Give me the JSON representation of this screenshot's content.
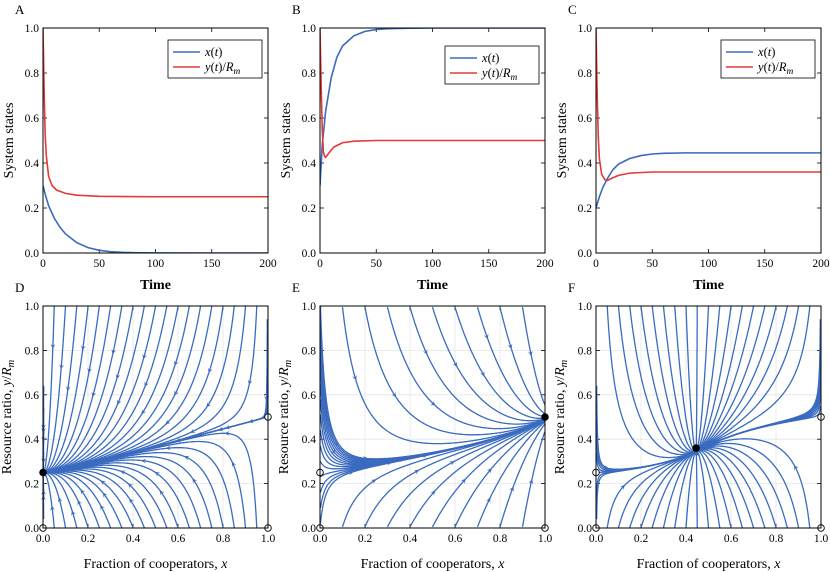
{
  "chart_data": [
    {
      "panel": "A",
      "type": "line",
      "xlabel": "Time",
      "ylabel": "System states",
      "xlim": [
        0,
        200
      ],
      "ylim": [
        0,
        1
      ],
      "xticks": [
        "0",
        "50",
        "100",
        "150",
        "200"
      ],
      "yticks": [
        "0.0",
        "0.2",
        "0.4",
        "0.6",
        "0.8",
        "1.0"
      ],
      "legend_position": "top-right",
      "series": [
        {
          "name": "x(t)",
          "color": "#3a6bbf",
          "x": [
            0,
            2,
            5,
            10,
            15,
            20,
            30,
            40,
            50,
            60,
            70,
            80,
            100,
            150,
            200
          ],
          "y": [
            0.3,
            0.26,
            0.21,
            0.155,
            0.115,
            0.085,
            0.046,
            0.024,
            0.012,
            0.006,
            0.003,
            0.0015,
            0.0004,
            0.0,
            0.0
          ]
        },
        {
          "name": "y(t)/R_m",
          "color": "#e53935",
          "x": [
            0,
            1,
            2,
            3,
            5,
            8,
            12,
            20,
            30,
            50,
            100,
            150,
            200
          ],
          "y": [
            1.0,
            0.72,
            0.52,
            0.43,
            0.34,
            0.3,
            0.28,
            0.265,
            0.257,
            0.252,
            0.25,
            0.25,
            0.25
          ]
        }
      ]
    },
    {
      "panel": "B",
      "type": "line",
      "xlabel": "Time",
      "ylabel": "System states",
      "xlim": [
        0,
        200
      ],
      "ylim": [
        0,
        1
      ],
      "xticks": [
        "0",
        "50",
        "100",
        "150",
        "200"
      ],
      "yticks": [
        "0.0",
        "0.2",
        "0.4",
        "0.6",
        "0.8",
        "1.0"
      ],
      "legend_position": "right",
      "series": [
        {
          "name": "x(t)",
          "color": "#3a6bbf",
          "x": [
            0,
            2,
            5,
            10,
            15,
            20,
            30,
            40,
            50,
            60,
            80,
            100,
            200
          ],
          "y": [
            0.3,
            0.48,
            0.63,
            0.78,
            0.87,
            0.92,
            0.965,
            0.985,
            0.993,
            0.997,
            0.999,
            1.0,
            1.0
          ]
        },
        {
          "name": "y(t)/R_m",
          "color": "#e53935",
          "x": [
            0,
            1,
            2,
            3,
            4,
            5,
            8,
            12,
            20,
            30,
            50,
            100,
            200
          ],
          "y": [
            1.0,
            0.75,
            0.55,
            0.45,
            0.43,
            0.425,
            0.445,
            0.47,
            0.49,
            0.497,
            0.5,
            0.5,
            0.5
          ]
        }
      ]
    },
    {
      "panel": "C",
      "type": "line",
      "xlabel": "Time",
      "ylabel": "System states",
      "xlim": [
        0,
        200
      ],
      "ylim": [
        0,
        1
      ],
      "xticks": [
        "0",
        "50",
        "100",
        "150",
        "200"
      ],
      "yticks": [
        "0.0",
        "0.2",
        "0.4",
        "0.6",
        "0.8",
        "1.0"
      ],
      "legend_position": "top-right",
      "series": [
        {
          "name": "x(t)",
          "color": "#3a6bbf",
          "x": [
            0,
            3,
            6,
            10,
            15,
            20,
            30,
            40,
            50,
            60,
            80,
            100,
            200
          ],
          "y": [
            0.2,
            0.25,
            0.29,
            0.33,
            0.37,
            0.395,
            0.42,
            0.433,
            0.44,
            0.443,
            0.445,
            0.445,
            0.445
          ]
        },
        {
          "name": "y(t)/R_m",
          "color": "#e53935",
          "x": [
            0,
            1,
            2,
            3,
            5,
            8,
            10,
            13,
            20,
            30,
            50,
            100,
            200
          ],
          "y": [
            1.0,
            0.72,
            0.52,
            0.42,
            0.35,
            0.325,
            0.322,
            0.33,
            0.345,
            0.355,
            0.36,
            0.36,
            0.36
          ]
        }
      ]
    },
    {
      "panel": "D",
      "type": "streamplot",
      "xlabel": "Fraction of cooperators, x",
      "ylabel": "Resource ratio, y/R_m",
      "xlim": [
        0,
        1
      ],
      "ylim": [
        0,
        1
      ],
      "xticks": [
        "0.0",
        "0.2",
        "0.4",
        "0.6",
        "0.8",
        "1.0"
      ],
      "yticks": [
        "0.0",
        "0.2",
        "0.4",
        "0.6",
        "0.8",
        "1.0"
      ],
      "flow": {
        "kind": "two_edge",
        "y_left": 0.25,
        "y_right": 0.5
      },
      "equilibria": [
        {
          "x": 0,
          "y": 0.25,
          "stable": true
        },
        {
          "x": 1,
          "y": 0.5,
          "stable": false
        },
        {
          "x": 0,
          "y": 0,
          "stable": false
        },
        {
          "x": 1,
          "y": 0,
          "stable": false
        }
      ]
    },
    {
      "panel": "E",
      "type": "streamplot",
      "xlabel": "Fraction of cooperators, x",
      "ylabel": "Resource ratio, y/R_m",
      "xlim": [
        0,
        1
      ],
      "ylim": [
        0,
        1
      ],
      "xticks": [
        "0.0",
        "0.2",
        "0.4",
        "0.6",
        "0.8",
        "1.0"
      ],
      "yticks": [
        "0.0",
        "0.2",
        "0.4",
        "0.6",
        "0.8",
        "1.0"
      ],
      "flow": {
        "kind": "to_right",
        "y_left": 0.25,
        "y_right": 0.5
      },
      "equilibria": [
        {
          "x": 1,
          "y": 0.5,
          "stable": true
        },
        {
          "x": 0,
          "y": 0.25,
          "stable": false
        },
        {
          "x": 0,
          "y": 0,
          "stable": false
        },
        {
          "x": 1,
          "y": 0,
          "stable": false
        }
      ]
    },
    {
      "panel": "F",
      "type": "streamplot",
      "xlabel": "Fraction of cooperators, x",
      "ylabel": "Resource ratio, y/R_m",
      "xlim": [
        0,
        1
      ],
      "ylim": [
        0,
        1
      ],
      "xticks": [
        "0.0",
        "0.2",
        "0.4",
        "0.6",
        "0.8",
        "1.0"
      ],
      "yticks": [
        "0.0",
        "0.2",
        "0.4",
        "0.6",
        "0.8",
        "1.0"
      ],
      "flow": {
        "kind": "interior",
        "y_left": 0.25,
        "y_right": 0.5,
        "x_star": 0.445,
        "y_star": 0.36
      },
      "equilibria": [
        {
          "x": 0.445,
          "y": 0.36,
          "stable": true
        },
        {
          "x": 0,
          "y": 0.25,
          "stable": false
        },
        {
          "x": 1,
          "y": 0.5,
          "stable": false
        },
        {
          "x": 0,
          "y": 0,
          "stable": false
        },
        {
          "x": 1,
          "y": 0,
          "stable": false
        }
      ]
    }
  ],
  "colors": {
    "stream": "#3a6bbf",
    "grid": "#e6e6e6",
    "x_series": "#3a6bbf",
    "y_series": "#e53935"
  }
}
